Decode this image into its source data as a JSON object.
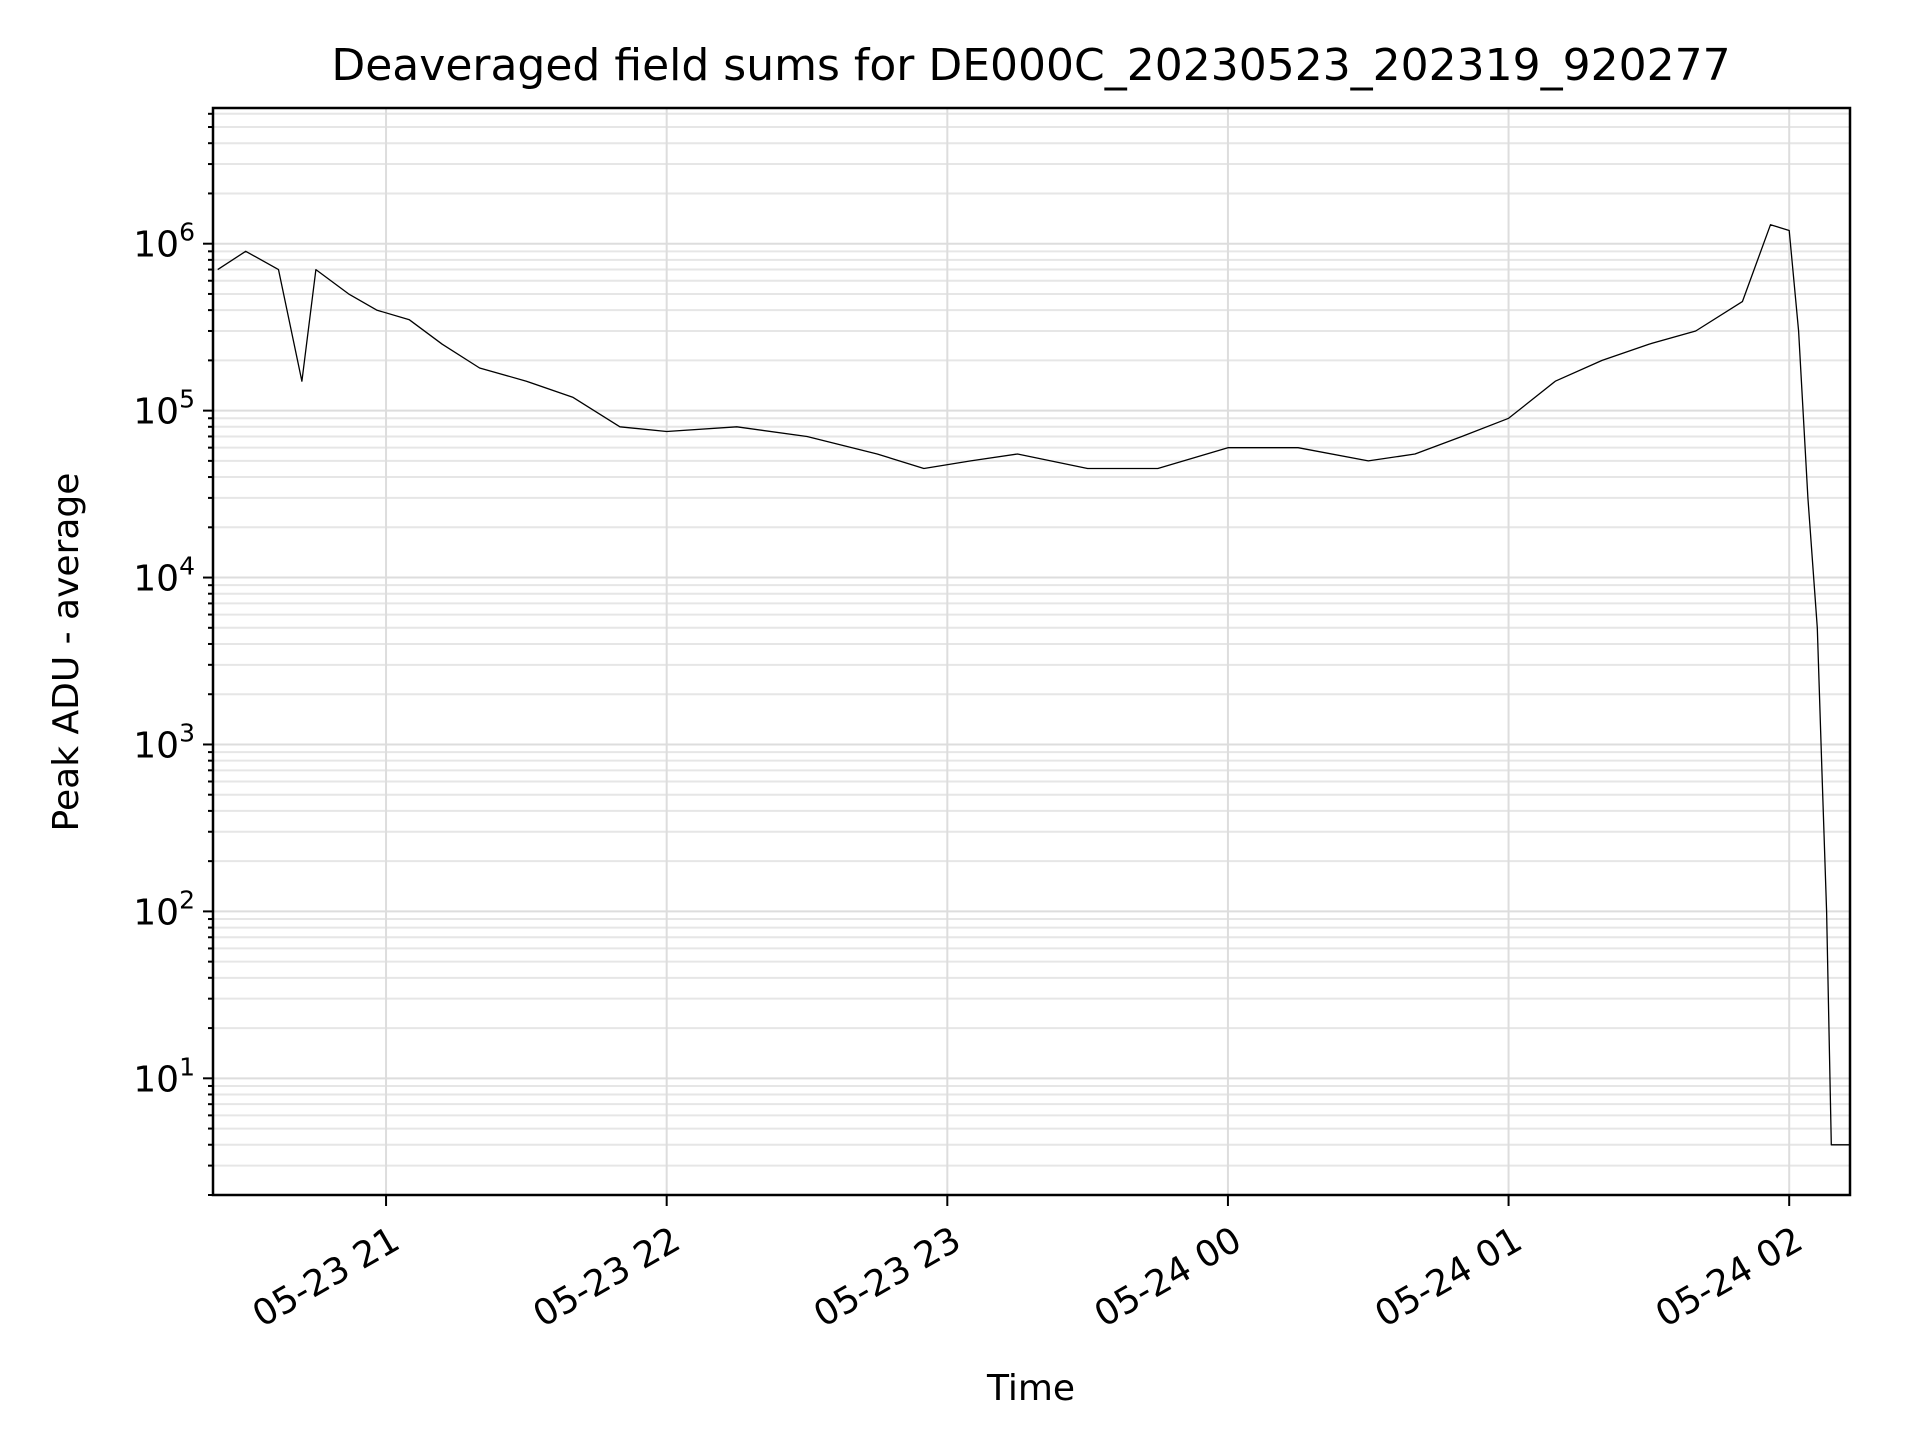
{
  "chart_data": {
    "type": "line",
    "title": "Deaveraged field sums for DE000C_20230523_202319_920277",
    "xlabel": "Time",
    "ylabel": "Peak ADU - average",
    "yscale": "log",
    "grid": "on (major and minor)",
    "legend": "none",
    "x_tick_labels": [
      "05-23 21",
      "05-23 22",
      "05-23 23",
      "05-24 00",
      "05-24 01",
      "05-24 02"
    ],
    "x_ticks": [
      "2023-05-23 21:00",
      "2023-05-23 22:00",
      "2023-05-23 23:00",
      "2023-05-24 00:00",
      "2023-05-24 01:00",
      "2023-05-24 02:00"
    ],
    "y_ticks": [
      {
        "base": "10",
        "exp": "1",
        "value": 10
      },
      {
        "base": "10",
        "exp": "2",
        "value": 100
      },
      {
        "base": "10",
        "exp": "3",
        "value": 1000
      },
      {
        "base": "10",
        "exp": "4",
        "value": 10000
      },
      {
        "base": "10",
        "exp": "5",
        "value": 100000
      },
      {
        "base": "10",
        "exp": "6",
        "value": 1000000
      }
    ],
    "xlim": [
      "2023-05-23 20:23",
      "2023-05-24 02:13"
    ],
    "ylim": [
      2,
      6500000
    ],
    "line_color": "#000000",
    "series": [
      {
        "x": [
          "2023-05-23 20:24",
          "2023-05-23 20:30",
          "2023-05-23 20:37",
          "2023-05-23 20:42",
          "2023-05-23 20:45",
          "2023-05-23 20:52",
          "2023-05-23 20:58",
          "2023-05-23 21:05",
          "2023-05-23 21:12",
          "2023-05-23 21:20",
          "2023-05-23 21:30",
          "2023-05-23 21:40",
          "2023-05-23 21:50",
          "2023-05-23 22:00",
          "2023-05-23 22:15",
          "2023-05-23 22:30",
          "2023-05-23 22:45",
          "2023-05-23 22:55",
          "2023-05-23 23:05",
          "2023-05-23 23:15",
          "2023-05-23 23:30",
          "2023-05-23 23:45",
          "2023-05-24 00:00",
          "2023-05-24 00:15",
          "2023-05-24 00:30",
          "2023-05-24 00:40",
          "2023-05-24 00:50",
          "2023-05-24 01:00",
          "2023-05-24 01:10",
          "2023-05-24 01:20",
          "2023-05-24 01:30",
          "2023-05-24 01:40",
          "2023-05-24 01:50",
          "2023-05-24 01:56",
          "2023-05-24 02:00",
          "2023-05-24 02:02",
          "2023-05-24 02:04",
          "2023-05-24 02:06",
          "2023-05-24 02:07",
          "2023-05-24 02:08",
          "2023-05-24 02:09",
          "2023-05-24 02:10",
          "2023-05-24 02:13"
        ],
        "values": [
          700000,
          900000,
          700000,
          150000,
          700000,
          500000,
          400000,
          350000,
          250000,
          180000,
          150000,
          120000,
          80000,
          75000,
          80000,
          70000,
          55000,
          45000,
          50000,
          55000,
          45000,
          45000,
          60000,
          60000,
          50000,
          55000,
          70000,
          90000,
          150000,
          200000,
          250000,
          300000,
          450000,
          1300000,
          1200000,
          300000,
          30000,
          5000,
          700,
          100,
          4,
          4,
          4
        ]
      }
    ]
  }
}
